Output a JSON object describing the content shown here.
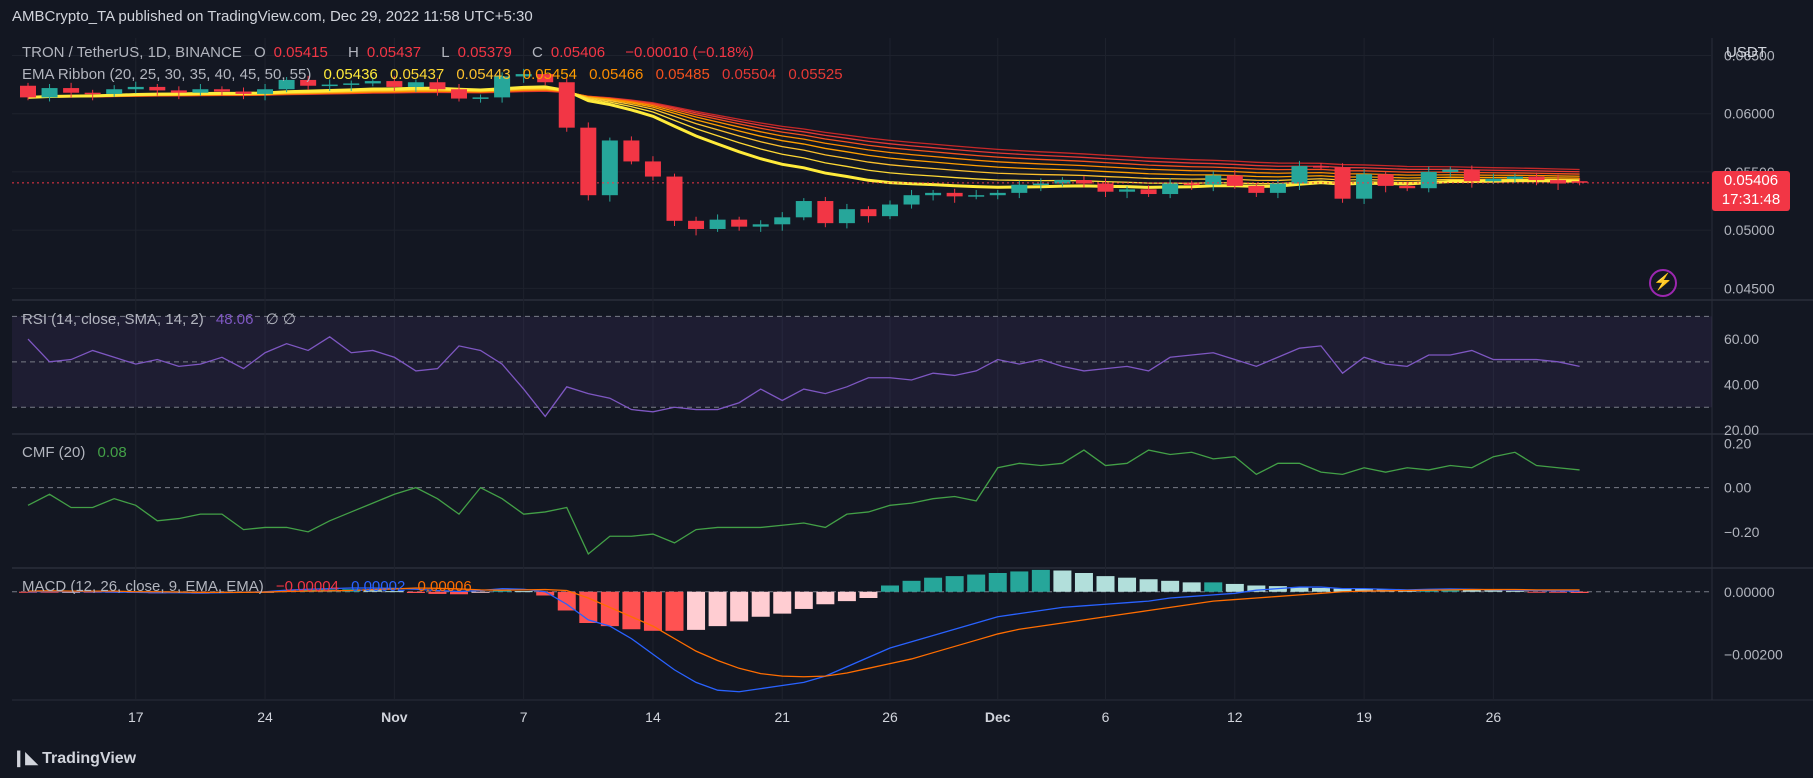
{
  "header": {
    "publisher": "AMBCrypto_TA published on TradingView.com, Dec 29, 2022 11:58 UTC+5:30"
  },
  "brand": {
    "name": "TradingView"
  },
  "price_pane": {
    "symbol": "TRON / TetherUS, 1D, BINANCE",
    "ohlc": {
      "o_label": "O",
      "o": "0.05415",
      "h_label": "H",
      "h": "0.05437",
      "l_label": "L",
      "l": "0.05379",
      "c_label": "C",
      "c": "0.05406",
      "change": "−0.00010 (−0.18%)"
    },
    "ema_label": "EMA Ribbon (20, 25, 30, 35, 40, 45, 50, 55)",
    "ema_values": [
      "0.05436",
      "0.05437",
      "0.05443",
      "0.05454",
      "0.05466",
      "0.05485",
      "0.05504",
      "0.05525"
    ],
    "axis_currency": "USDT",
    "price_tag": {
      "value": "0.05406",
      "countdown": "17:31:48"
    },
    "y_ticks": [
      "0.06500",
      "0.06000",
      "0.05500",
      "0.05000",
      "0.04500"
    ]
  },
  "rsi_pane": {
    "label": "RSI (14, close, SMA, 14, 2)",
    "value": "48.06",
    "extra": "∅  ∅",
    "y_ticks": [
      "60.00",
      "40.00",
      "20.00"
    ]
  },
  "cmf_pane": {
    "label": "CMF (20)",
    "value": "0.08",
    "y_ticks": [
      "0.20",
      "0.00",
      "−0.20"
    ]
  },
  "macd_pane": {
    "label": "MACD (12, 26, close, 9, EMA, EMA)",
    "values": [
      "−0.00004",
      "0.00002",
      "0.00006"
    ],
    "y_ticks": [
      "0.00000",
      "−0.00200"
    ]
  },
  "x_axis": {
    "labels": [
      "17",
      "24",
      "Nov",
      "7",
      "14",
      "21",
      "26",
      "Dec",
      "6",
      "12",
      "19",
      "26"
    ]
  },
  "colors": {
    "up": "#26a69a",
    "down": "#f23645",
    "ema_fast": "#ffeb3b",
    "ema_slow": "#e53935",
    "rsi": "#7e57c2",
    "cmf": "#43a047",
    "macd": "#2962ff",
    "signal": "#ff6d00"
  },
  "chart_data": [
    {
      "type": "candlestick",
      "series": [
        {
          "name": "TRON / TetherUS",
          "close": [
            0.0614,
            0.0622,
            0.0618,
            0.0617,
            0.0621,
            0.0623,
            0.062,
            0.0618,
            0.0621,
            0.0619,
            0.0617,
            0.0621,
            0.0629,
            0.0624,
            0.0625,
            0.0626,
            0.0628,
            0.0623,
            0.0627,
            0.0621,
            0.0613,
            0.0614,
            0.0632,
            0.0634,
            0.0627,
            0.0588,
            0.053,
            0.0577,
            0.0559,
            0.0546,
            0.0508,
            0.0501,
            0.0509,
            0.0503,
            0.0505,
            0.0511,
            0.0525,
            0.0506,
            0.0518,
            0.0512,
            0.0522,
            0.053,
            0.0532,
            0.0529,
            0.053,
            0.0532,
            0.0539,
            0.054,
            0.0543,
            0.054,
            0.0533,
            0.0535,
            0.0531,
            0.054,
            0.0539,
            0.0547,
            0.0538,
            0.0532,
            0.054,
            0.0555,
            0.0554,
            0.0527,
            0.0548,
            0.0538,
            0.0536,
            0.055,
            0.0552,
            0.0542,
            0.0544,
            0.0546,
            0.0543,
            0.054,
            0.0541
          ],
          "open": [
            0.0624,
            0.0614,
            0.0622,
            0.0618,
            0.0617,
            0.0621,
            0.0623,
            0.062,
            0.0618,
            0.0621,
            0.0619,
            0.0617,
            0.0621,
            0.0629,
            0.0624,
            0.0625,
            0.0626,
            0.0628,
            0.0623,
            0.0627,
            0.0621,
            0.0613,
            0.0614,
            0.0632,
            0.0634,
            0.0627,
            0.0588,
            0.053,
            0.0577,
            0.0559,
            0.0546,
            0.0508,
            0.0501,
            0.0509,
            0.0503,
            0.0505,
            0.0511,
            0.0525,
            0.0506,
            0.0518,
            0.0512,
            0.0522,
            0.053,
            0.0532,
            0.0529,
            0.053,
            0.0532,
            0.0539,
            0.054,
            0.0543,
            0.054,
            0.0533,
            0.0535,
            0.0531,
            0.054,
            0.0539,
            0.0547,
            0.0538,
            0.0532,
            0.054,
            0.0555,
            0.0554,
            0.0527,
            0.0548,
            0.0538,
            0.0536,
            0.055,
            0.0552,
            0.0542,
            0.0544,
            0.0546,
            0.0543,
            0.0542
          ]
        }
      ]
    },
    {
      "type": "line",
      "name": "RSI",
      "values": [
        60,
        50,
        51,
        55,
        52,
        49,
        51,
        48,
        49,
        52,
        47,
        54,
        58,
        55,
        61,
        54,
        55,
        52,
        46,
        47,
        57,
        55,
        49,
        38,
        26,
        39,
        36,
        34,
        29,
        28,
        30,
        29,
        29,
        32,
        38,
        33,
        38,
        36,
        39,
        43,
        43,
        42,
        45,
        44,
        46,
        51,
        49,
        51,
        48,
        46,
        47,
        48,
        46,
        52,
        53,
        54,
        51,
        48,
        52,
        56,
        57,
        45,
        52,
        49,
        48,
        53,
        53,
        55,
        51,
        51,
        51,
        50,
        48
      ]
    },
    {
      "type": "line",
      "name": "CMF",
      "values": [
        -0.08,
        -0.03,
        -0.09,
        -0.09,
        -0.05,
        -0.08,
        -0.15,
        -0.14,
        -0.12,
        -0.12,
        -0.19,
        -0.18,
        -0.18,
        -0.2,
        -0.15,
        -0.11,
        -0.07,
        -0.03,
        0.0,
        -0.05,
        -0.12,
        0.0,
        -0.05,
        -0.12,
        -0.11,
        -0.09,
        -0.3,
        -0.22,
        -0.22,
        -0.21,
        -0.25,
        -0.19,
        -0.18,
        -0.18,
        -0.18,
        -0.17,
        -0.16,
        -0.18,
        -0.12,
        -0.11,
        -0.08,
        -0.07,
        -0.05,
        -0.04,
        -0.06,
        0.09,
        0.11,
        0.1,
        0.11,
        0.17,
        0.1,
        0.11,
        0.17,
        0.15,
        0.16,
        0.13,
        0.14,
        0.06,
        0.11,
        0.11,
        0.07,
        0.06,
        0.09,
        0.07,
        0.09,
        0.08,
        0.1,
        0.09,
        0.14,
        0.16,
        0.1,
        0.09,
        0.08
      ]
    },
    {
      "type": "bar+line",
      "name": "MACD",
      "histogram": [
        -2e-05,
        -2e-05,
        -1e-05,
        -2e-05,
        -3e-05,
        -4e-05,
        -5e-05,
        -4e-05,
        -6e-05,
        -4e-05,
        -3e-05,
        -2e-05,
        4e-05,
        6e-05,
        7e-05,
        8e-05,
        5e-05,
        2e-05,
        -4e-05,
        -7e-05,
        -8e-05,
        -2e-05,
        5e-05,
        2e-05,
        -0.00012,
        -0.0006,
        -0.001,
        -0.0011,
        -0.0012,
        -0.00125,
        -0.00125,
        -0.00122,
        -0.0011,
        -0.00095,
        -0.0008,
        -0.0007,
        -0.00055,
        -0.0004,
        -0.0003,
        -0.0002,
        0.0002,
        0.00035,
        0.00045,
        0.0005,
        0.00055,
        0.0006,
        0.00065,
        0.0007,
        0.00068,
        0.0006,
        0.0005,
        0.00045,
        0.0004,
        0.00035,
        0.0003,
        0.0003,
        0.00025,
        0.0002,
        0.00018,
        0.00015,
        0.00012,
        0.0001,
        9e-05,
        8e-05,
        7e-05,
        8e-05,
        9e-05,
        7e-05,
        5e-05,
        3e-05,
        -1e-05,
        -3e-05,
        -4e-05
      ],
      "macd": [
        0.0,
        1e-05,
        1e-05,
        0.0,
        -1e-05,
        -2e-05,
        -3e-05,
        -3e-05,
        -4e-05,
        -3e-05,
        -2e-05,
        0.0,
        5e-05,
        8e-05,
        0.0001,
        0.00012,
        0.00012,
        0.00011,
        8e-05,
        4e-05,
        1e-05,
        4e-05,
        0.0001,
        8e-05,
        0.0,
        -0.0004,
        -0.0009,
        -0.0011,
        -0.0015,
        -0.002,
        -0.0025,
        -0.0029,
        -0.00315,
        -0.0032,
        -0.0031,
        -0.003,
        -0.0029,
        -0.0027,
        -0.0024,
        -0.0021,
        -0.0018,
        -0.0016,
        -0.0014,
        -0.0012,
        -0.001,
        -0.0008,
        -0.0007,
        -0.0006,
        -0.0005,
        -0.00045,
        -0.0004,
        -0.00035,
        -0.0003,
        -0.0002,
        -0.00015,
        -0.0001,
        -5e-05,
        5e-05,
        0.0001,
        0.00015,
        0.00015,
        0.0001,
        0.0001,
        8e-05,
        6e-05,
        8e-05,
        9e-05,
        8e-05,
        6e-05,
        5e-05,
        4e-05,
        3e-05,
        2e-05
      ],
      "signal": [
        2e-05,
        3e-05,
        2e-05,
        2e-05,
        2e-05,
        0.0,
        0.0,
        -1e-05,
        -2e-05,
        -2e-05,
        -2e-05,
        -1e-05,
        1e-05,
        2e-05,
        3e-05,
        4e-05,
        7e-05,
        9e-05,
        0.00012,
        0.00011,
        9e-05,
        6e-05,
        5e-05,
        6e-05,
        7e-05,
        4e-05,
        -0.0002,
        -0.0005,
        -0.0008,
        -0.0011,
        -0.0015,
        -0.0019,
        -0.0022,
        -0.00245,
        -0.00262,
        -0.0027,
        -0.00272,
        -0.0027,
        -0.0026,
        -0.00245,
        -0.0023,
        -0.00215,
        -0.00195,
        -0.00175,
        -0.00155,
        -0.00135,
        -0.0012,
        -0.0011,
        -0.001,
        -0.0009,
        -0.0008,
        -0.0007,
        -0.0006,
        -0.0005,
        -0.0004,
        -0.0003,
        -0.00025,
        -0.0002,
        -0.00015,
        -0.0001,
        -5e-05,
        0.0,
        2e-05,
        3e-05,
        4e-05,
        5e-05,
        6e-05,
        7e-05,
        7e-05,
        7e-05,
        6e-05,
        6e-05,
        6e-05
      ]
    }
  ]
}
